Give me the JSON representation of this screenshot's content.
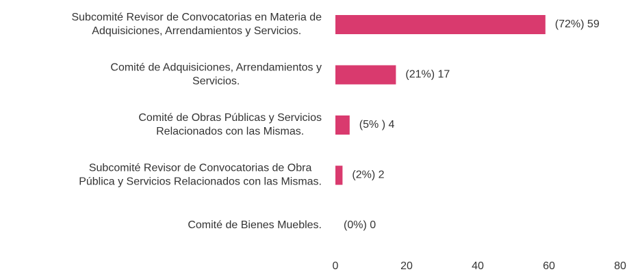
{
  "chart_data": {
    "type": "bar",
    "orientation": "horizontal",
    "categories": [
      [
        "Subcomité Revisor de Convocatorias en Materia de",
        "Adquisiciones, Arrendamientos y Servicios."
      ],
      [
        "Comité de Adquisiciones, Arrendamientos y",
        "Servicios."
      ],
      [
        "Comité de Obras Públicas y Servicios",
        "Relacionados con las Mismas."
      ],
      [
        "Subcomité Revisor de Convocatorias de Obra",
        "Pública y Servicios Relacionados con las Mismas."
      ],
      [
        "Comité de Bienes Muebles."
      ]
    ],
    "values": [
      59,
      17,
      4,
      2,
      0
    ],
    "value_labels": [
      "(72%) 59",
      "(21%) 17",
      "(5% ) 4",
      "(2%) 2",
      "(0%) 0"
    ],
    "color": "#d93a6e",
    "xlim": [
      0,
      80
    ],
    "xticks": [
      0,
      20,
      40,
      60,
      80
    ],
    "grid": false
  }
}
